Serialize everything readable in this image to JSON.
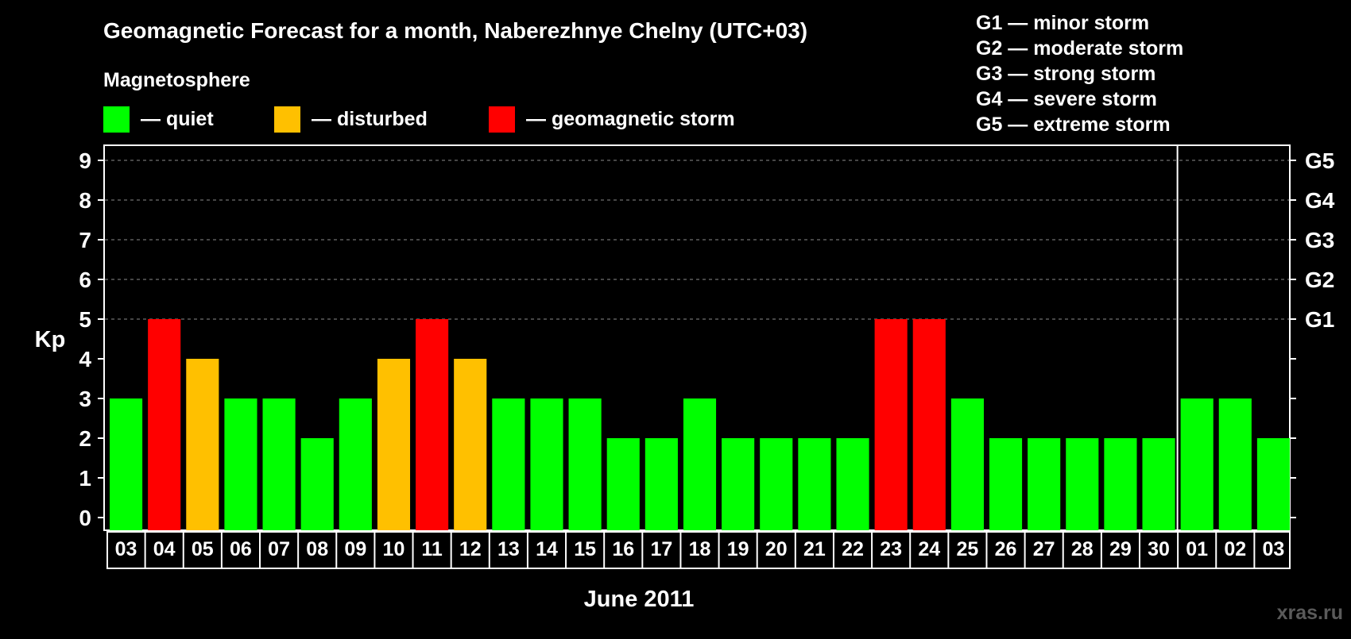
{
  "chart_data": {
    "type": "bar",
    "title": "Geomagnetic Forecast for a month, Naberezhnye Chelny (UTC+03)",
    "legend_title": "Magnetosphere",
    "legend": [
      {
        "key": "quiet",
        "label": "— quiet",
        "color": "#00ff00"
      },
      {
        "key": "disturbed",
        "label": "— disturbed",
        "color": "#ffc000"
      },
      {
        "key": "storm",
        "label": "— geomagnetic storm",
        "color": "#ff0000"
      }
    ],
    "storm_scale": [
      "G1 — minor storm",
      "G2 — moderate storm",
      "G3 — strong storm",
      "G4 — severe storm",
      "G5 — extreme storm"
    ],
    "ylabel": "Kp",
    "ylim": [
      0,
      9
    ],
    "yticks": [
      "0",
      "1",
      "2",
      "3",
      "4",
      "5",
      "6",
      "7",
      "8",
      "9"
    ],
    "right_ticks": [
      {
        "value": 5,
        "label": "G1"
      },
      {
        "value": 6,
        "label": "G2"
      },
      {
        "value": 7,
        "label": "G3"
      },
      {
        "value": 8,
        "label": "G4"
      },
      {
        "value": 9,
        "label": "G5"
      }
    ],
    "gridlines": [
      5,
      6,
      7,
      8,
      9
    ],
    "xlabel": "June 2011",
    "categories": [
      "03",
      "04",
      "05",
      "06",
      "07",
      "08",
      "09",
      "10",
      "11",
      "12",
      "13",
      "14",
      "15",
      "16",
      "17",
      "18",
      "19",
      "20",
      "21",
      "22",
      "23",
      "24",
      "25",
      "26",
      "27",
      "28",
      "29",
      "30",
      "01",
      "02",
      "03"
    ],
    "values": [
      3,
      5,
      4,
      3,
      3,
      2,
      3,
      4,
      5,
      4,
      3,
      3,
      3,
      2,
      2,
      3,
      2,
      2,
      2,
      2,
      5,
      5,
      3,
      2,
      2,
      2,
      2,
      2,
      3,
      3,
      2
    ],
    "levels": [
      "quiet",
      "storm",
      "disturbed",
      "quiet",
      "quiet",
      "quiet",
      "quiet",
      "disturbed",
      "storm",
      "disturbed",
      "quiet",
      "quiet",
      "quiet",
      "quiet",
      "quiet",
      "quiet",
      "quiet",
      "quiet",
      "quiet",
      "quiet",
      "storm",
      "storm",
      "quiet",
      "quiet",
      "quiet",
      "quiet",
      "quiet",
      "quiet",
      "quiet",
      "quiet",
      "quiet"
    ],
    "month_boundary_after_index": 27
  },
  "watermark": "xras.ru"
}
